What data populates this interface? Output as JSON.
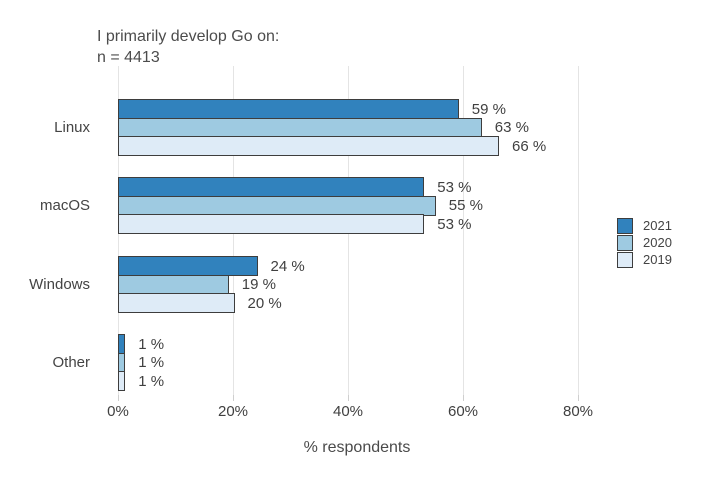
{
  "chart_data": {
    "type": "bar",
    "orientation": "horizontal",
    "title": "I primarily develop Go on:",
    "subtitle": "n = 4413",
    "categories": [
      "Linux",
      "macOS",
      "Windows",
      "Other"
    ],
    "series": [
      {
        "name": "2021",
        "color": "#3182bd",
        "values": [
          59,
          53,
          24,
          1
        ]
      },
      {
        "name": "2020",
        "color": "#9ecae1",
        "values": [
          63,
          55,
          19,
          1
        ]
      },
      {
        "name": "2019",
        "color": "#deebf7",
        "values": [
          66,
          53,
          20,
          1
        ]
      }
    ],
    "value_label_suffix": " %",
    "xlabel": "% respondents",
    "x_ticks": [
      {
        "value": 0,
        "label": "0%"
      },
      {
        "value": 20,
        "label": "20%"
      },
      {
        "value": 40,
        "label": "40%"
      },
      {
        "value": 60,
        "label": "60%"
      },
      {
        "value": 80,
        "label": "80%"
      }
    ],
    "xlim": [
      0,
      100
    ],
    "grid": "vertical-major",
    "legend_position": "right"
  },
  "colors": {
    "bar_border": "#3d3d3d",
    "gridline": "#e4e4e4",
    "tick_mark": "#cfcfcf",
    "text": "#404040",
    "background": "#ffffff"
  }
}
